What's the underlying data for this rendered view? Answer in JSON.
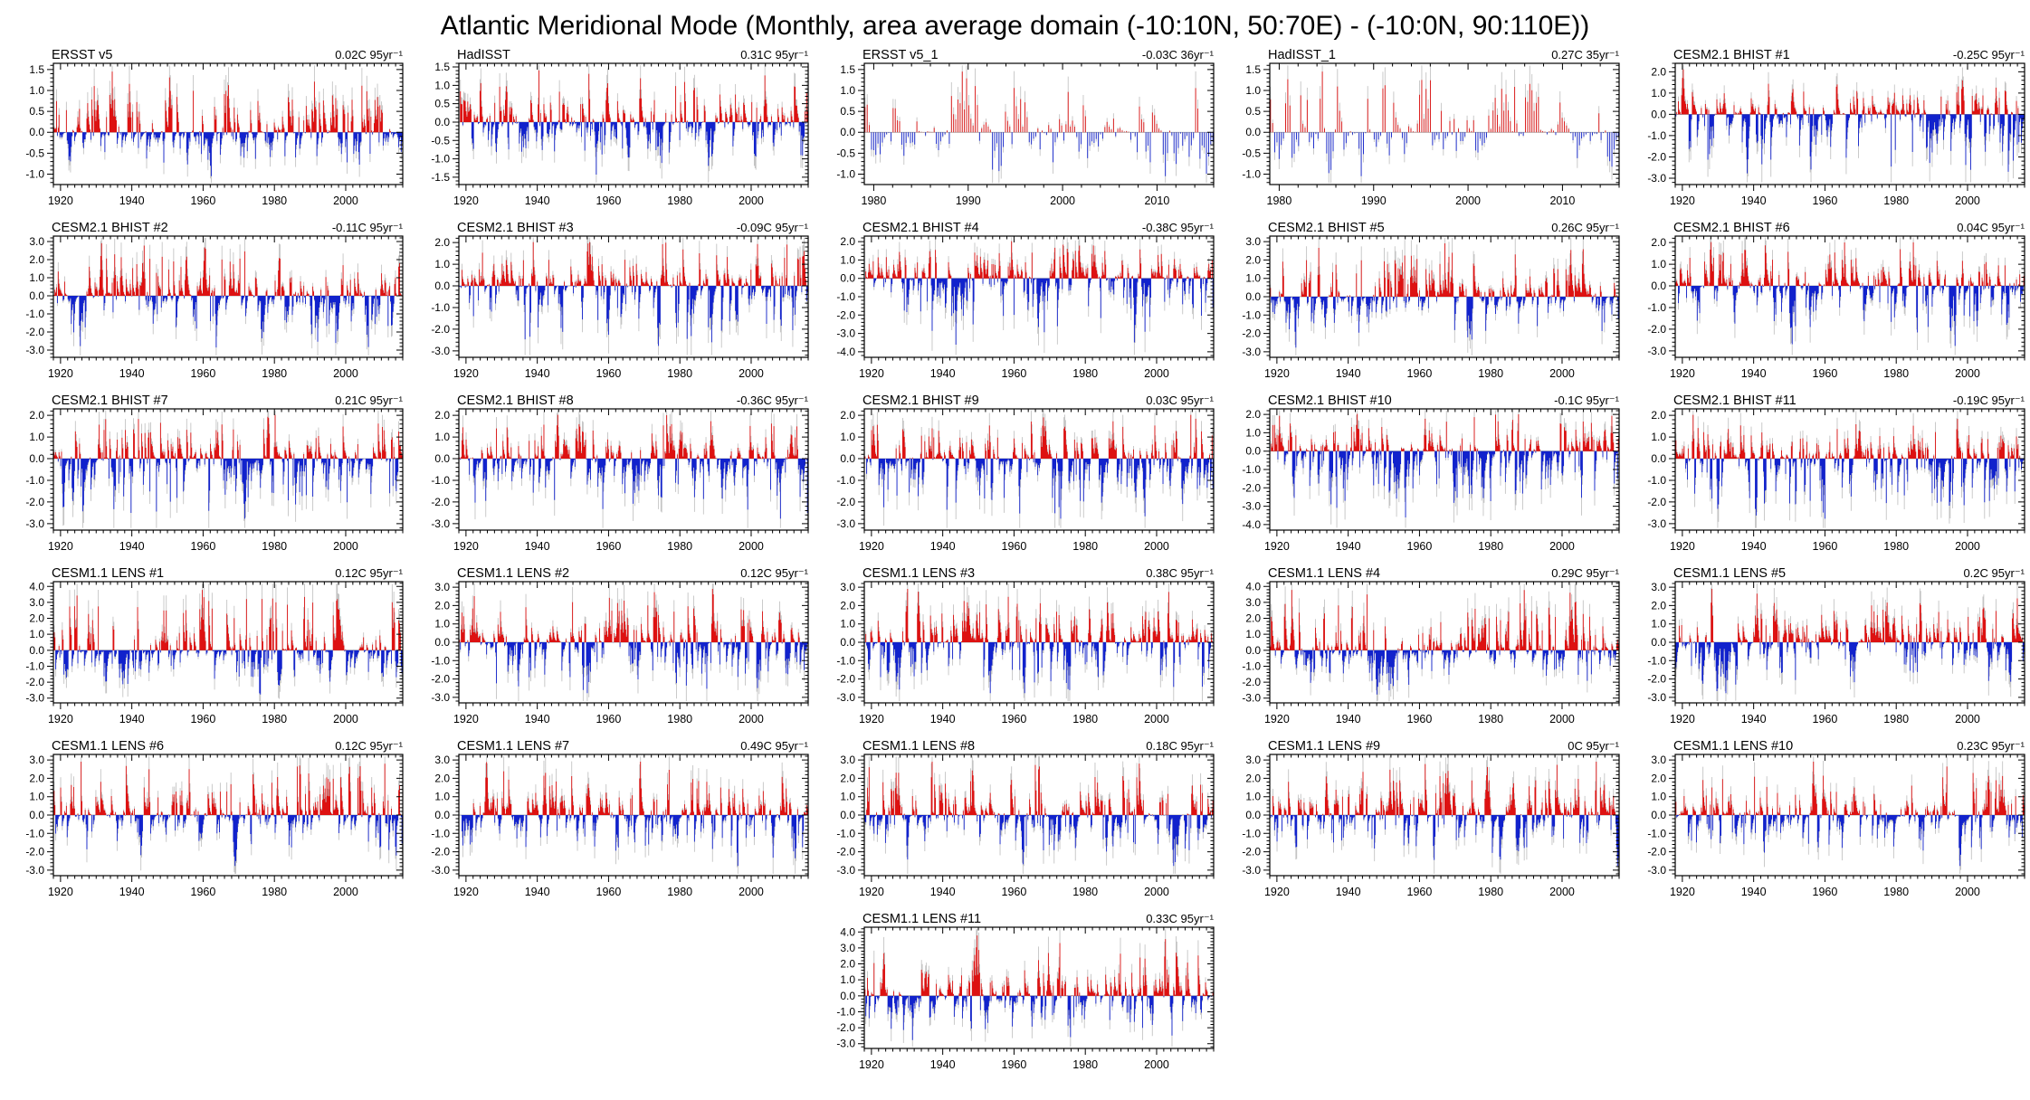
{
  "title": "Atlantic Meridional Mode (Monthly, area average domain (-10:10N, 50:70E) - (-10:0N, 90:110E))",
  "chart_data": {
    "type": "bar",
    "title": "Atlantic Meridional Mode (Monthly, area average domain (-10:10N, 50:70E) - (-10:0N, 90:110E))",
    "xlabel": "",
    "ylabel": "",
    "grid": false,
    "legend": "none",
    "colors": {
      "raw_bar": "#c4c4c4",
      "positive_bar": "#dd1111",
      "negative_bar": "#1122cc",
      "zero_line": "#999999",
      "axis": "#000000"
    },
    "x_axes": {
      "full": {
        "range": [
          1918,
          2016
        ],
        "tick_labels": [
          1920,
          1940,
          1960,
          1980,
          2000
        ],
        "minor_step_years": 2
      },
      "recent": {
        "range": [
          1979,
          2016
        ],
        "tick_labels": [
          1980,
          1990,
          2000,
          2010
        ],
        "minor_step_years": 2
      }
    },
    "panels": [
      {
        "id": "ersst-v5",
        "title": "ERSST v5",
        "trend": "0.02C 95yr⁻¹",
        "row": 1,
        "col": 1,
        "xaxis": "full",
        "ylim": [
          -1.25,
          1.65
        ],
        "yticks": [
          1.5,
          1.0,
          0.5,
          0.0,
          -0.5,
          -1.0
        ],
        "seed": 101
      },
      {
        "id": "hadisst",
        "title": "HadISST",
        "trend": "0.31C 95yr⁻¹",
        "row": 1,
        "col": 2,
        "xaxis": "full",
        "ylim": [
          -1.7,
          1.6
        ],
        "yticks": [
          1.5,
          1.0,
          0.5,
          0.0,
          -0.5,
          -1.0,
          -1.5
        ],
        "seed": 102
      },
      {
        "id": "ersst-v5-1",
        "title": "ERSST v5_1",
        "trend": "-0.03C 36yr⁻¹",
        "row": 1,
        "col": 3,
        "xaxis": "recent",
        "ylim": [
          -1.25,
          1.65
        ],
        "yticks": [
          1.5,
          1.0,
          0.5,
          0.0,
          -0.5,
          -1.0
        ],
        "seed": 103
      },
      {
        "id": "hadisst-1",
        "title": "HadISST_1",
        "trend": "0.27C 35yr⁻¹",
        "row": 1,
        "col": 4,
        "xaxis": "recent",
        "ylim": [
          -1.25,
          1.65
        ],
        "yticks": [
          1.5,
          1.0,
          0.5,
          0.0,
          -0.5,
          -1.0
        ],
        "seed": 104
      },
      {
        "id": "cesm21-bhist-1",
        "title": "CESM2.1 BHIST #1",
        "trend": "-0.25C 95yr⁻¹",
        "row": 1,
        "col": 5,
        "xaxis": "full",
        "ylim": [
          -3.3,
          2.4
        ],
        "yticks": [
          2.0,
          1.0,
          0.0,
          -1.0,
          -2.0,
          -3.0
        ],
        "seed": 105
      },
      {
        "id": "cesm21-bhist-2",
        "title": "CESM2.1 BHIST #2",
        "trend": "-0.11C 95yr⁻¹",
        "row": 2,
        "col": 1,
        "xaxis": "full",
        "ylim": [
          -3.4,
          3.3
        ],
        "yticks": [
          3.0,
          2.0,
          1.0,
          0.0,
          -1.0,
          -2.0,
          -3.0
        ],
        "seed": 106
      },
      {
        "id": "cesm21-bhist-3",
        "title": "CESM2.1 BHIST #3",
        "trend": "-0.09C 95yr⁻¹",
        "row": 2,
        "col": 2,
        "xaxis": "full",
        "ylim": [
          -3.3,
          2.3
        ],
        "yticks": [
          2.0,
          1.0,
          0.0,
          -1.0,
          -2.0,
          -3.0
        ],
        "seed": 107
      },
      {
        "id": "cesm21-bhist-4",
        "title": "CESM2.1 BHIST #4",
        "trend": "-0.38C 95yr⁻¹",
        "row": 2,
        "col": 3,
        "xaxis": "full",
        "ylim": [
          -4.3,
          2.3
        ],
        "yticks": [
          2.0,
          1.0,
          0.0,
          -1.0,
          -2.0,
          -3.0,
          -4.0
        ],
        "seed": 108
      },
      {
        "id": "cesm21-bhist-5",
        "title": "CESM2.1 BHIST #5",
        "trend": "0.26C 95yr⁻¹",
        "row": 2,
        "col": 4,
        "xaxis": "full",
        "ylim": [
          -3.3,
          3.3
        ],
        "yticks": [
          3.0,
          2.0,
          1.0,
          0.0,
          -1.0,
          -2.0,
          -3.0
        ],
        "seed": 109
      },
      {
        "id": "cesm21-bhist-6",
        "title": "CESM2.1 BHIST #6",
        "trend": "0.04C 95yr⁻¹",
        "row": 2,
        "col": 5,
        "xaxis": "full",
        "ylim": [
          -3.3,
          2.3
        ],
        "yticks": [
          2.0,
          1.0,
          0.0,
          -1.0,
          -2.0,
          -3.0
        ],
        "seed": 110
      },
      {
        "id": "cesm21-bhist-7",
        "title": "CESM2.1 BHIST #7",
        "trend": "0.21C 95yr⁻¹",
        "row": 3,
        "col": 1,
        "xaxis": "full",
        "ylim": [
          -3.3,
          2.3
        ],
        "yticks": [
          2.0,
          1.0,
          0.0,
          -1.0,
          -2.0,
          -3.0
        ],
        "seed": 111
      },
      {
        "id": "cesm21-bhist-8",
        "title": "CESM2.1 BHIST #8",
        "trend": "-0.36C 95yr⁻¹",
        "row": 3,
        "col": 2,
        "xaxis": "full",
        "ylim": [
          -3.3,
          2.3
        ],
        "yticks": [
          2.0,
          1.0,
          0.0,
          -1.0,
          -2.0,
          -3.0
        ],
        "seed": 112
      },
      {
        "id": "cesm21-bhist-9",
        "title": "CESM2.1 BHIST #9",
        "trend": "0.03C 95yr⁻¹",
        "row": 3,
        "col": 3,
        "xaxis": "full",
        "ylim": [
          -3.3,
          2.3
        ],
        "yticks": [
          2.0,
          1.0,
          0.0,
          -1.0,
          -2.0,
          -3.0
        ],
        "seed": 113
      },
      {
        "id": "cesm21-bhist-10",
        "title": "CESM2.1 BHIST #10",
        "trend": "-0.1C 95yr⁻¹",
        "row": 3,
        "col": 4,
        "xaxis": "full",
        "ylim": [
          -4.3,
          2.3
        ],
        "yticks": [
          2.0,
          1.0,
          0.0,
          -1.0,
          -2.0,
          -3.0,
          -4.0
        ],
        "seed": 114
      },
      {
        "id": "cesm21-bhist-11",
        "title": "CESM2.1 BHIST #11",
        "trend": "-0.19C 95yr⁻¹",
        "row": 3,
        "col": 5,
        "xaxis": "full",
        "ylim": [
          -3.3,
          2.3
        ],
        "yticks": [
          2.0,
          1.0,
          0.0,
          -1.0,
          -2.0,
          -3.0
        ],
        "seed": 115
      },
      {
        "id": "cesm11-lens-1",
        "title": "CESM1.1 LENS #1",
        "trend": "0.12C 95yr⁻¹",
        "row": 4,
        "col": 1,
        "xaxis": "full",
        "ylim": [
          -3.3,
          4.3
        ],
        "yticks": [
          4.0,
          3.0,
          2.0,
          1.0,
          0.0,
          -1.0,
          -2.0,
          -3.0
        ],
        "seed": 116
      },
      {
        "id": "cesm11-lens-2",
        "title": "CESM1.1 LENS #2",
        "trend": "0.12C 95yr⁻¹",
        "row": 4,
        "col": 2,
        "xaxis": "full",
        "ylim": [
          -3.3,
          3.3
        ],
        "yticks": [
          3.0,
          2.0,
          1.0,
          0.0,
          -1.0,
          -2.0,
          -3.0
        ],
        "seed": 117
      },
      {
        "id": "cesm11-lens-3",
        "title": "CESM1.1 LENS #3",
        "trend": "0.38C 95yr⁻¹",
        "row": 4,
        "col": 3,
        "xaxis": "full",
        "ylim": [
          -3.3,
          3.3
        ],
        "yticks": [
          3.0,
          2.0,
          1.0,
          0.0,
          -1.0,
          -2.0,
          -3.0
        ],
        "seed": 118
      },
      {
        "id": "cesm11-lens-4",
        "title": "CESM1.1 LENS #4",
        "trend": "0.29C 95yr⁻¹",
        "row": 4,
        "col": 4,
        "xaxis": "full",
        "ylim": [
          -3.3,
          4.3
        ],
        "yticks": [
          4.0,
          3.0,
          2.0,
          1.0,
          0.0,
          -1.0,
          -2.0,
          -3.0
        ],
        "seed": 119
      },
      {
        "id": "cesm11-lens-5",
        "title": "CESM1.1 LENS #5",
        "trend": "0.2C 95yr⁻¹",
        "row": 4,
        "col": 5,
        "xaxis": "full",
        "ylim": [
          -3.3,
          3.3
        ],
        "yticks": [
          3.0,
          2.0,
          1.0,
          0.0,
          -1.0,
          -2.0,
          -3.0
        ],
        "seed": 120
      },
      {
        "id": "cesm11-lens-6",
        "title": "CESM1.1 LENS #6",
        "trend": "0.12C 95yr⁻¹",
        "row": 5,
        "col": 1,
        "xaxis": "full",
        "ylim": [
          -3.3,
          3.3
        ],
        "yticks": [
          3.0,
          2.0,
          1.0,
          0.0,
          -1.0,
          -2.0,
          -3.0
        ],
        "seed": 121
      },
      {
        "id": "cesm11-lens-7",
        "title": "CESM1.1 LENS #7",
        "trend": "0.49C 95yr⁻¹",
        "row": 5,
        "col": 2,
        "xaxis": "full",
        "ylim": [
          -3.3,
          3.3
        ],
        "yticks": [
          3.0,
          2.0,
          1.0,
          0.0,
          -1.0,
          -2.0,
          -3.0
        ],
        "seed": 122
      },
      {
        "id": "cesm11-lens-8",
        "title": "CESM1.1 LENS #8",
        "trend": "0.18C 95yr⁻¹",
        "row": 5,
        "col": 3,
        "xaxis": "full",
        "ylim": [
          -3.3,
          3.3
        ],
        "yticks": [
          3.0,
          2.0,
          1.0,
          0.0,
          -1.0,
          -2.0,
          -3.0
        ],
        "seed": 123
      },
      {
        "id": "cesm11-lens-9",
        "title": "CESM1.1 LENS #9",
        "trend": "0C 95yr⁻¹",
        "row": 5,
        "col": 4,
        "xaxis": "full",
        "ylim": [
          -3.3,
          3.3
        ],
        "yticks": [
          3.0,
          2.0,
          1.0,
          0.0,
          -1.0,
          -2.0,
          -3.0
        ],
        "seed": 124
      },
      {
        "id": "cesm11-lens-10",
        "title": "CESM1.1 LENS #10",
        "trend": "0.23C 95yr⁻¹",
        "row": 5,
        "col": 5,
        "xaxis": "full",
        "ylim": [
          -3.3,
          3.3
        ],
        "yticks": [
          3.0,
          2.0,
          1.0,
          0.0,
          -1.0,
          -2.0,
          -3.0
        ],
        "seed": 125
      },
      {
        "id": "cesm11-lens-11",
        "title": "CESM1.1 LENS #11",
        "trend": "0.33C 95yr⁻¹",
        "row": 6,
        "col": 3,
        "xaxis": "full",
        "ylim": [
          -3.3,
          4.3
        ],
        "yticks": [
          4.0,
          3.0,
          2.0,
          1.0,
          0.0,
          -1.0,
          -2.0,
          -3.0
        ],
        "seed": 126
      }
    ]
  }
}
